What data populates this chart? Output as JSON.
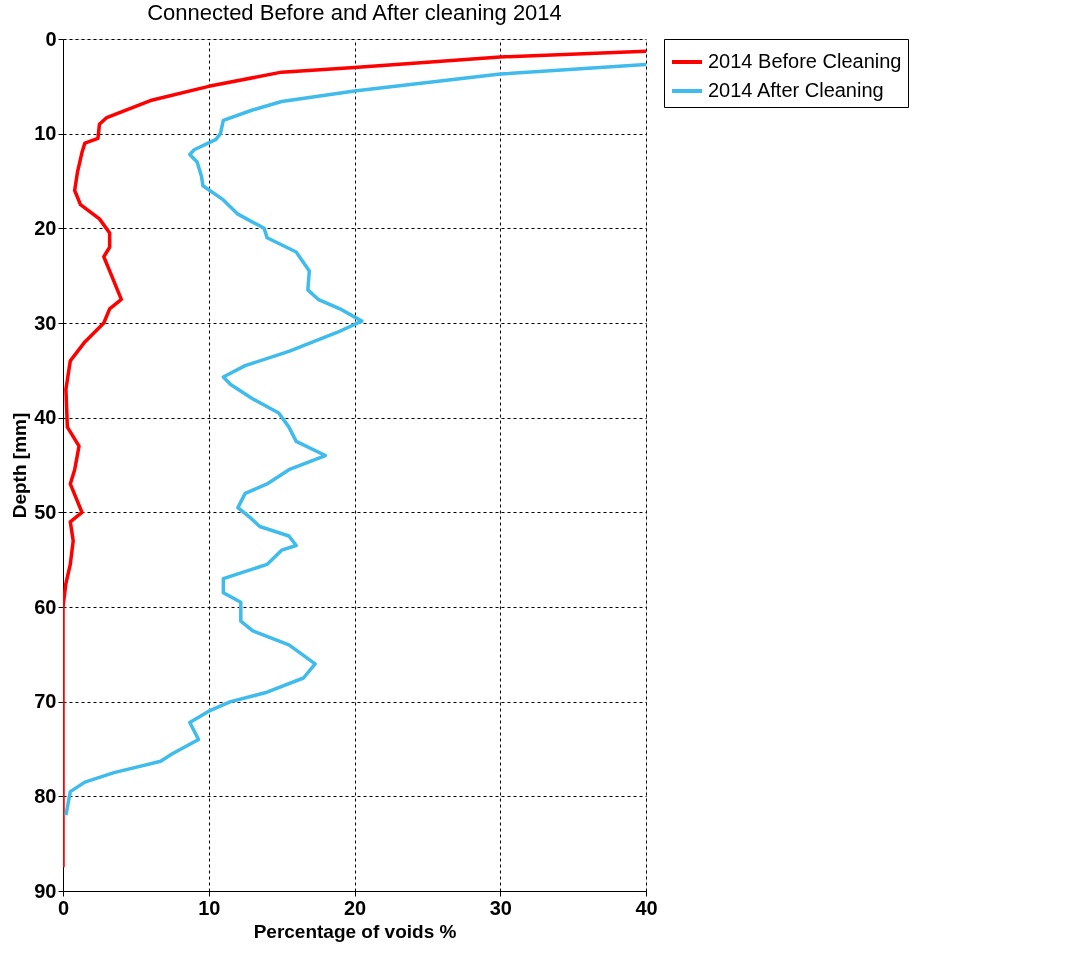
{
  "chart_data": {
    "type": "line",
    "title": "Connected Before and After cleaning 2014",
    "xlabel": "Percentage of voids %",
    "ylabel": "Depth [mm]",
    "xlim": [
      0,
      40
    ],
    "xticks": [
      0,
      10,
      20,
      30,
      40
    ],
    "ylim": [
      90,
      0
    ],
    "yticks": [
      0,
      10,
      20,
      30,
      40,
      50,
      60,
      70,
      80,
      90
    ],
    "grid": true,
    "legend": "top right",
    "line_style": "solid",
    "marker": "none",
    "series": [
      {
        "name": "2014 Before Cleaning",
        "color": "#ff0000",
        "x": [
          40,
          30,
          20,
          15,
          10,
          6,
          3,
          2.5,
          2.4,
          1.5,
          1.3,
          1,
          0.8,
          1.2,
          2.5,
          3.2,
          3.2,
          2.8,
          3.2,
          4,
          3.2,
          2.8,
          1.5,
          0.5,
          0.2,
          0.3,
          1.1,
          0.8,
          0.5,
          1.3,
          0.5,
          0.7,
          0.5,
          0.2,
          0,
          0
        ],
        "values": [
          1.3,
          1.9,
          3,
          3.5,
          5,
          6.5,
          8.3,
          9,
          10.5,
          11,
          12,
          14,
          16,
          17.5,
          19,
          20.5,
          22,
          23,
          24.5,
          27.5,
          28.5,
          30,
          32,
          34,
          37,
          41,
          43,
          45.5,
          47,
          50,
          51,
          53,
          55.5,
          57.5,
          60,
          87.5
        ]
      },
      {
        "name": "2014 After Cleaning",
        "color": "#3fbbec",
        "x": [
          40,
          30,
          20,
          15,
          13,
          11,
          10.8,
          10.5,
          9,
          8.7,
          9.2,
          9.5,
          9.6,
          11,
          12,
          13.8,
          14,
          16,
          16.9,
          16.8,
          17.5,
          19,
          20.5,
          18.8,
          15.5,
          12.5,
          11,
          11.5,
          13,
          14.8,
          15.5,
          16,
          18,
          15.5,
          14,
          12.5,
          12,
          12.8,
          13.5,
          15.5,
          16,
          15,
          14,
          12,
          11,
          11,
          12.2,
          12.2,
          13,
          15.5,
          17.3,
          16.5,
          14,
          11.5,
          10,
          8.7,
          9.3,
          7.5,
          6.7,
          3.5,
          1.5,
          0.5,
          0.2
        ],
        "values": [
          2.7,
          3.7,
          5.5,
          6.6,
          7.5,
          8.6,
          10,
          10.6,
          11.7,
          12.2,
          13,
          14.5,
          15.5,
          17,
          18.5,
          20,
          21,
          22.5,
          24.5,
          26.5,
          27.5,
          28.5,
          29.8,
          31,
          33,
          34.5,
          35.7,
          36.5,
          38,
          39.5,
          41,
          42.5,
          44,
          45.5,
          47,
          48,
          49.5,
          50.5,
          51.5,
          52.5,
          53.5,
          54,
          55.5,
          56.5,
          57,
          58.5,
          59.5,
          61.5,
          62.5,
          64,
          66,
          67.5,
          69,
          70,
          71,
          72.2,
          74,
          75.5,
          76.3,
          77.5,
          78.5,
          79.5,
          82
        ]
      }
    ]
  }
}
